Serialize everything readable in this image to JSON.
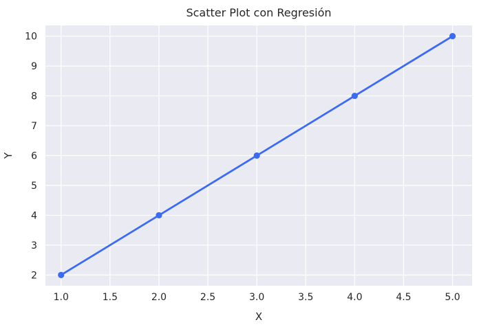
{
  "chart_data": {
    "type": "scatter",
    "title": "Scatter Plot con Regresión",
    "xlabel": "X",
    "ylabel": "Y",
    "xlim": [
      0.84,
      5.2
    ],
    "ylim": [
      1.64,
      10.36
    ],
    "xticks": [
      1.0,
      1.5,
      2.0,
      2.5,
      3.0,
      3.5,
      4.0,
      4.5,
      5.0
    ],
    "xtick_labels": [
      "1.0",
      "1.5",
      "2.0",
      "2.5",
      "3.0",
      "3.5",
      "4.0",
      "4.5",
      "5.0"
    ],
    "yticks": [
      2,
      3,
      4,
      5,
      6,
      7,
      8,
      9,
      10
    ],
    "ytick_labels": [
      "2",
      "3",
      "4",
      "5",
      "6",
      "7",
      "8",
      "9",
      "10"
    ],
    "grid": true,
    "series": [
      {
        "x": [
          1.0,
          2.0,
          3.0,
          4.0,
          5.0
        ],
        "y": [
          2,
          4,
          6,
          8,
          10
        ],
        "regression": {
          "slope": 2,
          "intercept": 0
        }
      }
    ],
    "colors": {
      "plot_background": "#EAEAF2",
      "grid": "#FFFFFF",
      "series": "#3D6BEF",
      "text": "#262626"
    }
  }
}
